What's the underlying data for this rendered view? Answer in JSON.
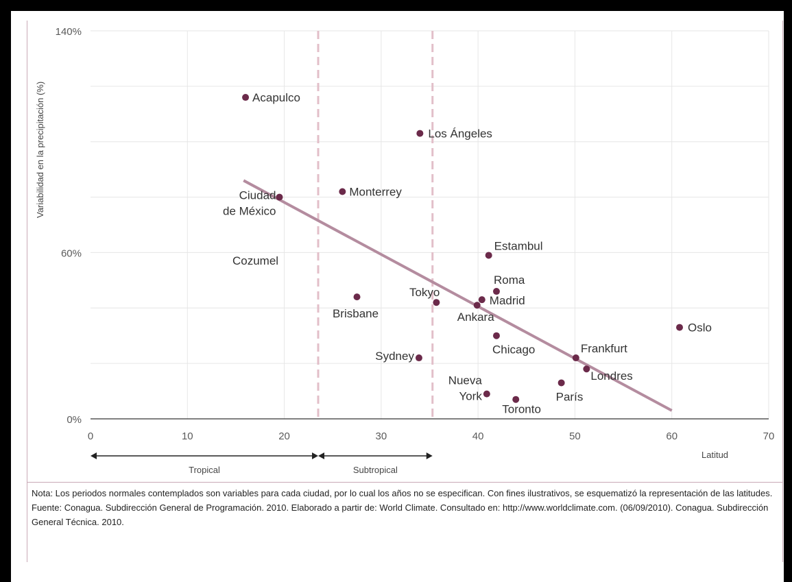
{
  "chart_data": {
    "type": "scatter",
    "ylabel": "Variabilidad en la precipitación (%)",
    "xlabel": "Latitud",
    "xlim": [
      0,
      70
    ],
    "ylim": [
      0,
      140
    ],
    "x_ticks": [
      0,
      10,
      20,
      30,
      40,
      50,
      60,
      70
    ],
    "y_ticks": [
      {
        "value": 0,
        "label": "0%"
      },
      {
        "value": 60,
        "label": "60%"
      },
      {
        "value": 140,
        "label": "140%"
      }
    ],
    "grid": true,
    "points": [
      {
        "label": "Acapulco",
        "x": 16.0,
        "y": 116
      },
      {
        "label": "Los Ángeles",
        "x": 34.0,
        "y": 103
      },
      {
        "label": "Monterrey",
        "x": 26.0,
        "y": 82
      },
      {
        "label": "Ciudad de México",
        "x": 19.5,
        "y": 80
      },
      {
        "label": "Estambul",
        "x": 41.1,
        "y": 59
      },
      {
        "label": "Brisbane",
        "x": 27.5,
        "y": 44
      },
      {
        "label": "Tokyo",
        "x": 35.7,
        "y": 42
      },
      {
        "label": "Roma",
        "x": 41.9,
        "y": 46
      },
      {
        "label": "Madrid",
        "x": 40.4,
        "y": 43
      },
      {
        "label": "Ankara",
        "x": 39.9,
        "y": 41
      },
      {
        "label": "Oslo",
        "x": 60.8,
        "y": 33
      },
      {
        "label": "Chicago",
        "x": 41.9,
        "y": 30
      },
      {
        "label": "Sydney",
        "x": 33.9,
        "y": 22
      },
      {
        "label": "Frankfurt",
        "x": 50.1,
        "y": 22
      },
      {
        "label": "Londres",
        "x": 51.2,
        "y": 18
      },
      {
        "label": "París",
        "x": 48.6,
        "y": 13
      },
      {
        "label": "Nueva York",
        "x": 40.9,
        "y": 9
      },
      {
        "label": "Toronto",
        "x": 43.9,
        "y": 7
      }
    ],
    "unplotted_labels": [
      "Cozumel"
    ],
    "trendline": {
      "x": [
        15.8,
        60.0
      ],
      "y": [
        86,
        3
      ]
    },
    "zones": [
      {
        "label": "Tropical",
        "x_start": 0,
        "x_end": 23.5
      },
      {
        "label": "Subtropical",
        "x_start": 23.5,
        "x_end": 35.3
      }
    ],
    "colors": {
      "point": "#6b2a4a",
      "trendline": "#b48c9f",
      "zone_line": "#e2bfc9",
      "grid": "#e6e6e6"
    }
  },
  "notes": {
    "nota": "Nota: Los periodos normales contemplados son variables para cada ciudad, por lo cual los años no se especifican. Con fines ilustrativos, se esquematizó la representación de las latitudes.",
    "fuente": "Fuente: Conagua. Subdirección General de Programación. 2010. Elaborado a partir de: World Climate. Consultado en: http://www.worldclimate.com. (06/09/2010). Conagua. Subdirección General Técnica. 2010."
  }
}
